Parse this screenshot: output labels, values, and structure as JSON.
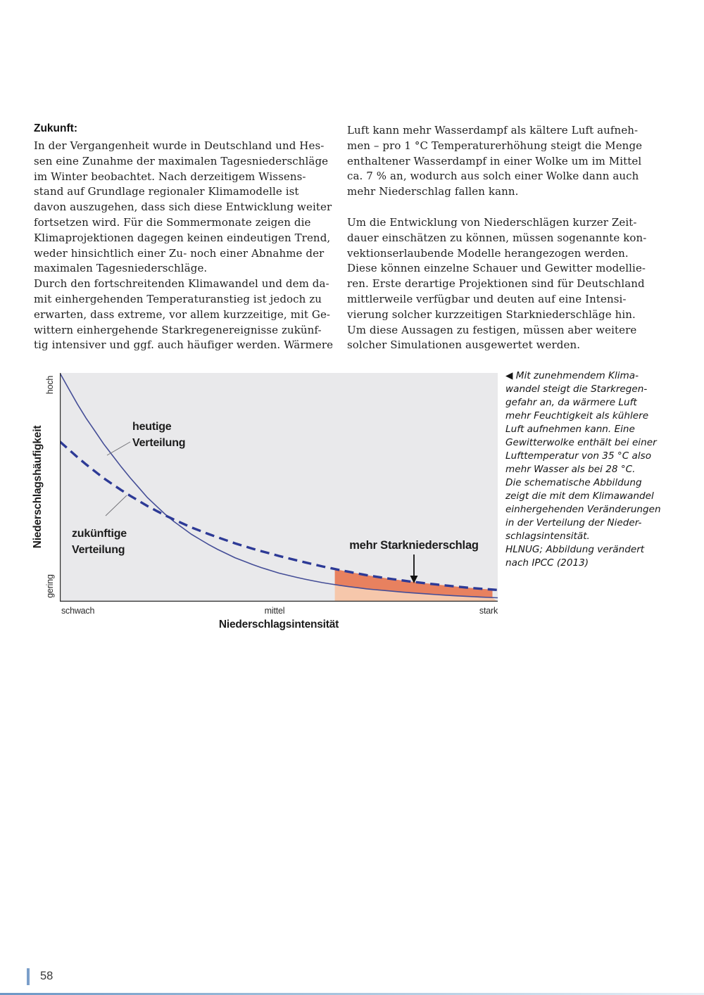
{
  "page": {
    "number": "58"
  },
  "columns": {
    "left": {
      "heading": "Zukunft:",
      "lines": [
        "In der Vergangenheit wurde in Deutschland und Hes-",
        "sen eine Zunahme der maximalen Tagesniederschläge",
        "im Winter beobachtet. Nach derzeitigem Wissens-",
        "stand auf Grundlage regionaler Klimamodelle ist",
        "davon auszugehen, dass sich diese Entwicklung weiter",
        "fortsetzen wird. Für die Sommermonate zeigen die",
        "Klimaprojektionen dagegen keinen eindeutigen Trend,",
        "weder hinsichtlich einer Zu- noch einer Abnahme der",
        "maximalen Tagesniederschläge.",
        "Durch den fortschreitenden Klimawandel und dem da-",
        "mit einhergehenden Temperaturanstieg ist jedoch zu",
        "erwarten, dass extreme, vor allem kurzzeitige, mit Ge-",
        "wittern einhergehende Starkregenereignisse zukünf-",
        "tig intensiver und ggf. auch häufiger werden. Wärmere"
      ]
    },
    "right": {
      "para1_lines": [
        "Luft kann mehr Wasserdampf als kältere Luft aufneh-",
        "men – pro 1 °C Temperaturerhöhung steigt die Menge",
        "enthaltener Wasserdampf in einer Wolke um im Mittel",
        "ca. 7 % an, wodurch aus solch einer Wolke dann auch",
        "mehr Niederschlag fallen kann."
      ],
      "para2_lines": [
        "Um die Entwicklung von Niederschlägen kurzer Zeit-",
        "dauer einschätzen zu können, müssen sogenannte kon-",
        "vektionserlaubende Modelle herangezogen werden.",
        "Diese können einzelne Schauer und Gewitter modellie-",
        "ren. Erste derartige Projektionen sind für Deutschland",
        "mittlerweile verfügbar und deuten auf eine Intensi-",
        "vierung solcher kurzzeitigen Starkniederschläge hin.",
        "Um diese Aussagen zu festigen, müssen aber weitere",
        "solcher Simulationen ausgewertet werden."
      ]
    }
  },
  "caption": {
    "lines": [
      "◀ Mit zunehmendem Klima-",
      "wandel steigt die Starkregen-",
      "gefahr an, da wärmere Luft",
      "mehr Feuchtigkeit als kühlere",
      "Luft aufnehmen kann. Eine",
      "Gewitterwolke enthält bei einer",
      "Lufttemperatur von 35 °C also",
      "mehr Wasser als bei 28 °C.",
      "Die schematische Abbildung",
      "zeigt die mit dem Klimawandel",
      "einhergehenden Veränderungen",
      "in der Verteilung der Nieder-",
      "schlagsintensität.",
      "HLNUG; Abbildung verändert",
      "nach IPCC (2013)"
    ]
  },
  "chart_data": {
    "type": "line",
    "xlabel": "Niederschlagsintensität",
    "ylabel": "Niederschlagshäufigkeit",
    "x_ticks": [
      "schwach",
      "mittel",
      "stark"
    ],
    "y_ticks": [
      "hoch",
      "gering"
    ],
    "annotation": "mehr Starkniederschlag",
    "legend_position": "inline-labels",
    "grid": false,
    "axis_note": "schematic, unitless axes; x = precipitation intensity (weak→strong), y = precipitation frequency (low→high)",
    "shade_from_t": 0.628,
    "series": [
      {
        "name": "heutige Verteilung",
        "label_lines": [
          "heutige",
          "Verteilung"
        ],
        "style": "solid",
        "points": [
          [
            0,
            0.0
          ],
          [
            0.05,
            0.17
          ],
          [
            0.1,
            0.31
          ],
          [
            0.15,
            0.435
          ],
          [
            0.2,
            0.545
          ],
          [
            0.25,
            0.635
          ],
          [
            0.3,
            0.705
          ],
          [
            0.35,
            0.762
          ],
          [
            0.4,
            0.808
          ],
          [
            0.45,
            0.845
          ],
          [
            0.5,
            0.875
          ],
          [
            0.55,
            0.898
          ],
          [
            0.6,
            0.917
          ],
          [
            0.65,
            0.932
          ],
          [
            0.7,
            0.944
          ],
          [
            0.75,
            0.953
          ],
          [
            0.8,
            0.961
          ],
          [
            0.85,
            0.968
          ],
          [
            0.9,
            0.974
          ],
          [
            0.95,
            0.979
          ],
          [
            1,
            0.983
          ]
        ]
      },
      {
        "name": "zukünftige Verteilung",
        "label_lines": [
          "zukünftige",
          "Verteilung"
        ],
        "style": "dashed",
        "points": [
          [
            0,
            0.3
          ],
          [
            0.05,
            0.385
          ],
          [
            0.1,
            0.46
          ],
          [
            0.15,
            0.525
          ],
          [
            0.2,
            0.582
          ],
          [
            0.25,
            0.632
          ],
          [
            0.3,
            0.675
          ],
          [
            0.35,
            0.712
          ],
          [
            0.4,
            0.745
          ],
          [
            0.45,
            0.774
          ],
          [
            0.5,
            0.8
          ],
          [
            0.55,
            0.824
          ],
          [
            0.6,
            0.846
          ],
          [
            0.65,
            0.866
          ],
          [
            0.7,
            0.884
          ],
          [
            0.75,
            0.899
          ],
          [
            0.8,
            0.912
          ],
          [
            0.85,
            0.923
          ],
          [
            0.9,
            0.933
          ],
          [
            0.95,
            0.942
          ],
          [
            1,
            0.949
          ]
        ]
      }
    ],
    "colors": {
      "curve_solid": "#454e97",
      "curve_dashed": "#2d3a96",
      "shade_dark": "#e8815f",
      "shade_light": "#f6c7ab",
      "plot_bg": "#e9e9eb",
      "axis": "#2b2b2b"
    }
  }
}
